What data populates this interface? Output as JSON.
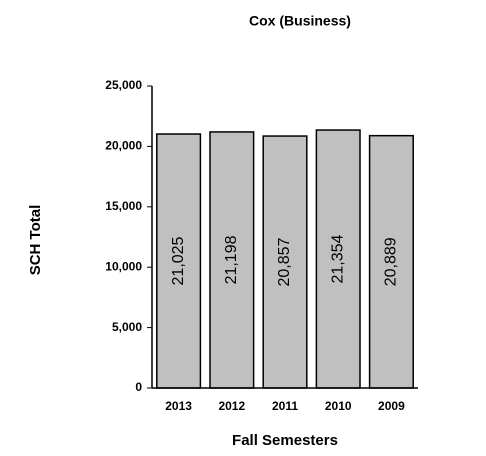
{
  "chart_data": {
    "type": "bar",
    "title": "Cox (Business)",
    "x_label": "Fall Semesters",
    "y_label": "SCH Total",
    "categories": [
      "2013",
      "2012",
      "2011",
      "2010",
      "2009"
    ],
    "values": [
      21025,
      21198,
      20857,
      21354,
      20889
    ],
    "value_labels": [
      "21,025",
      "21,198",
      "20,857",
      "21,354",
      "20,889"
    ],
    "color": "#c0c0c0",
    "ylim": [
      0,
      25000
    ],
    "yticks": [
      0,
      {
        "value": 5000,
        "label": "5,000"
      },
      {
        "value": 10000,
        "label": "10,000"
      },
      {
        "value": 15000,
        "label": "15,000"
      },
      {
        "value": 20000,
        "label": "20,000"
      },
      {
        "value": 25000,
        "label": "25,000"
      }
    ],
    "grid": false
  }
}
